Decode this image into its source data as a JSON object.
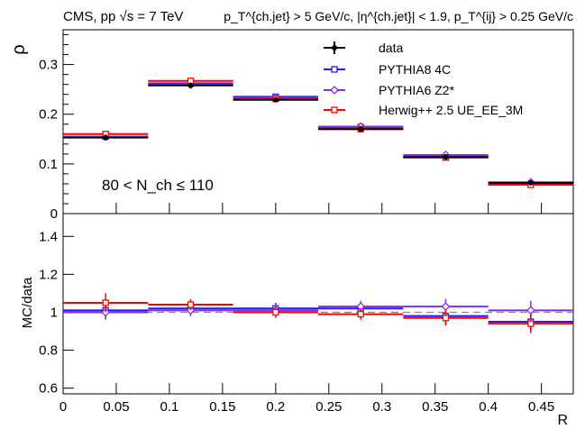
{
  "header": {
    "left": "CMS, pp √s = 7 TeV",
    "right": "p_T^{ch.jet} > 5 GeV/c, |η^{ch.jet}| < 1.9, p_T^{ij} > 0.25 GeV/c"
  },
  "annotation": "80 < N_ch ≤ 110",
  "chart_data": [
    {
      "type": "line",
      "panel": "upper",
      "ylabel": "ρ",
      "xlabel": "",
      "xlim": [
        0,
        0.48
      ],
      "ylim": [
        0,
        0.37
      ],
      "yticks": [
        "0",
        "0.1",
        "0.2",
        "0.3"
      ],
      "x_bin_edges": [
        0,
        0.08,
        0.16,
        0.24,
        0.32,
        0.4,
        0.48
      ],
      "x_bin_centers": [
        0.04,
        0.12,
        0.2,
        0.28,
        0.36,
        0.44
      ],
      "legend": "top-right",
      "series": [
        {
          "name": "data",
          "color": "#000000",
          "marker": "filled-circle",
          "values": [
            0.153,
            0.258,
            0.229,
            0.17,
            0.114,
            0.062
          ],
          "errors": [
            0.006,
            0.006,
            0.005,
            0.005,
            0.004,
            0.003
          ]
        },
        {
          "name": "PYTHIA8 4C",
          "color": "#1a1aff",
          "marker": "open-square",
          "values": [
            0.155,
            0.262,
            0.235,
            0.174,
            0.113,
            0.059
          ],
          "errors": [
            0.001,
            0.001,
            0.001,
            0.001,
            0.001,
            0.001
          ]
        },
        {
          "name": "PYTHIA6 Z2*",
          "color": "#8a2be2",
          "marker": "open-diamond",
          "values": [
            0.155,
            0.26,
            0.233,
            0.175,
            0.118,
            0.063
          ],
          "errors": [
            0.001,
            0.001,
            0.001,
            0.001,
            0.001,
            0.001
          ]
        },
        {
          "name": "Herwig++ 2.5  UE_EE_3M",
          "color": "#ff0000",
          "marker": "open-square",
          "values": [
            0.16,
            0.267,
            0.231,
            0.17,
            0.113,
            0.058
          ],
          "errors": [
            0.001,
            0.001,
            0.001,
            0.001,
            0.001,
            0.001
          ]
        }
      ]
    },
    {
      "type": "line",
      "panel": "lower",
      "ylabel": "MC/data",
      "xlabel": "R",
      "xlim": [
        0,
        0.48
      ],
      "ylim": [
        0.57,
        1.52
      ],
      "xticks": [
        "0",
        "0.05",
        "0.1",
        "0.15",
        "0.2",
        "0.25",
        "0.3",
        "0.35",
        "0.4",
        "0.45"
      ],
      "yticks": [
        "0.6",
        "0.8",
        "1",
        "1.2",
        "1.4"
      ],
      "x_bin_edges": [
        0,
        0.08,
        0.16,
        0.24,
        0.32,
        0.4,
        0.48
      ],
      "x_bin_centers": [
        0.04,
        0.12,
        0.2,
        0.28,
        0.36,
        0.44
      ],
      "reference_line": 1,
      "series": [
        {
          "name": "PYTHIA8 4C",
          "color": "#1a1aff",
          "values": [
            1.01,
            1.02,
            1.02,
            1.02,
            0.98,
            0.95
          ],
          "errors": [
            0.04,
            0.03,
            0.03,
            0.03,
            0.04,
            0.05
          ]
        },
        {
          "name": "PYTHIA6 Z2*",
          "color": "#8a2be2",
          "values": [
            1.0,
            1.01,
            1.01,
            1.03,
            1.03,
            1.01
          ],
          "errors": [
            0.04,
            0.03,
            0.03,
            0.03,
            0.04,
            0.05
          ]
        },
        {
          "name": "Herwig++ 2.5  UE_EE_3M",
          "color": "#ff0000",
          "values": [
            1.05,
            1.04,
            1.0,
            0.99,
            0.97,
            0.94
          ],
          "errors": [
            0.05,
            0.03,
            0.03,
            0.03,
            0.04,
            0.05
          ]
        }
      ]
    }
  ]
}
